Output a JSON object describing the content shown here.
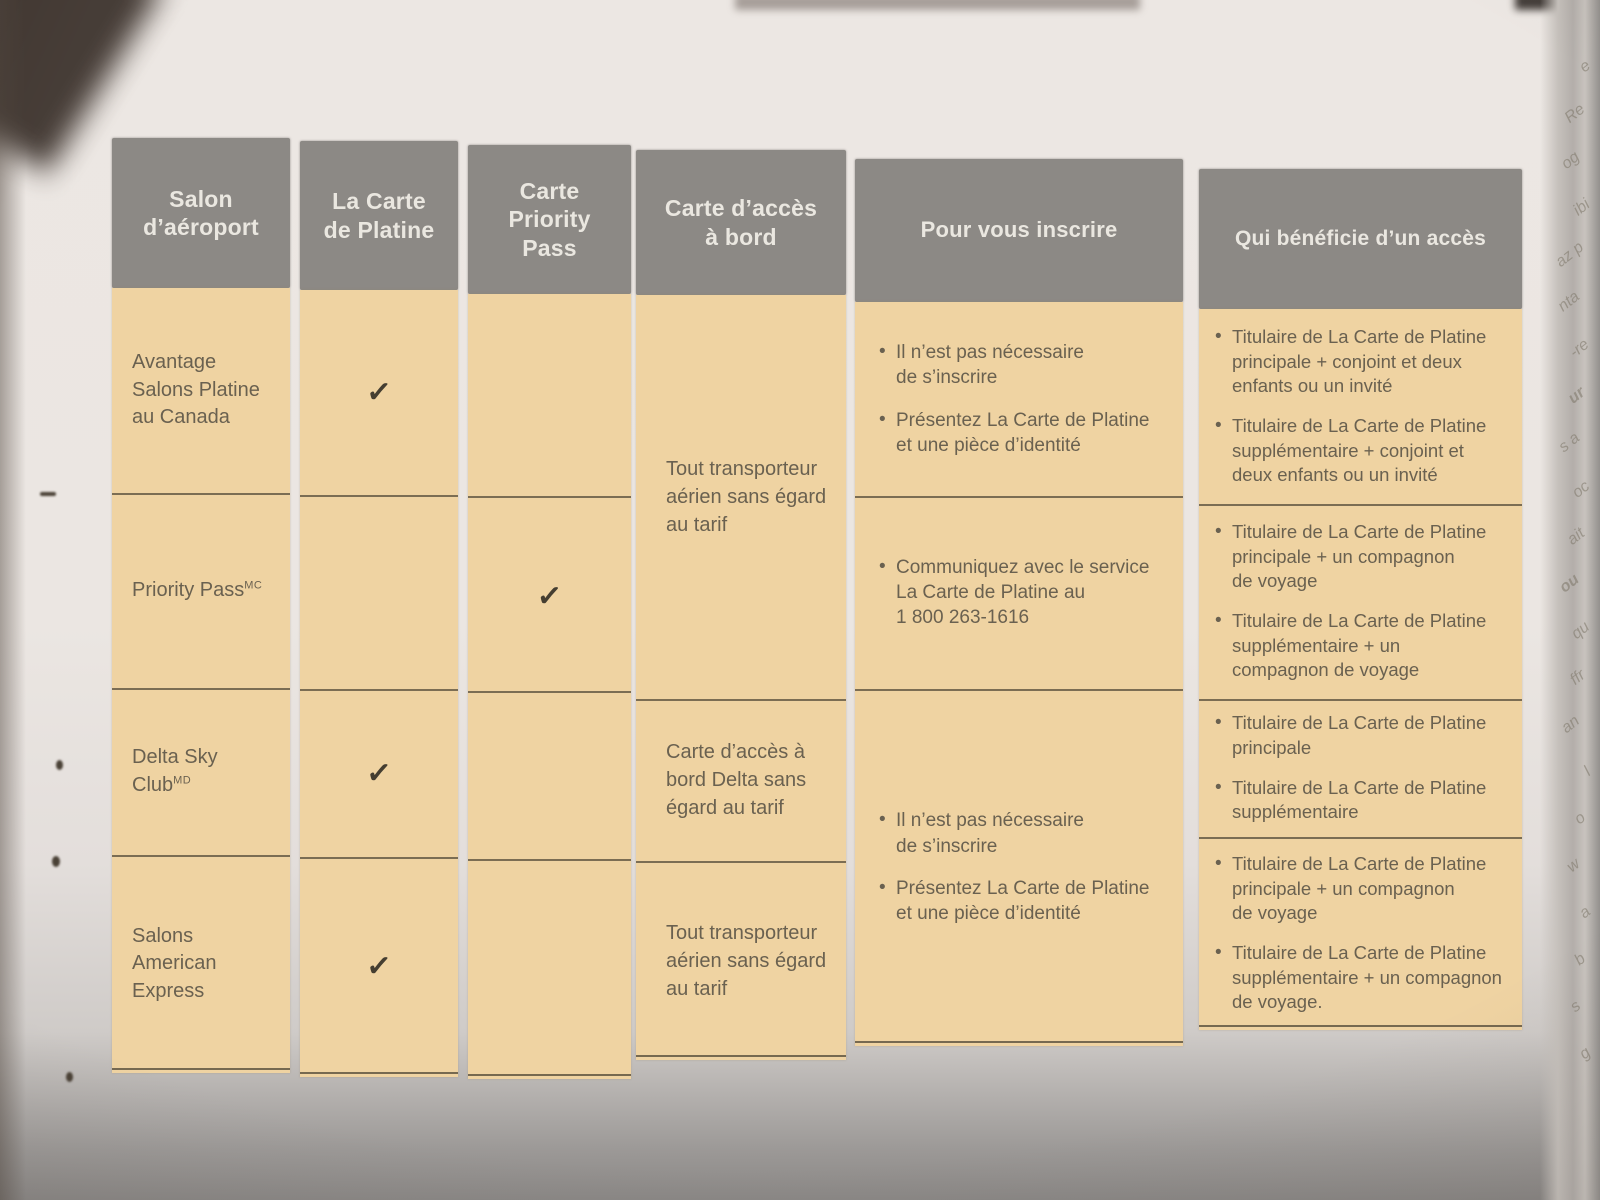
{
  "colors": {
    "header_bg": "#8c8985",
    "header_text": "#eae7e0",
    "cell_bg": "#efd3a2",
    "body_text": "#6a6150",
    "divider": "#4e4534",
    "check": "#453e31"
  },
  "photo": {
    "edge_fragments": [
      "e",
      "Re",
      "og",
      "ibi",
      "az p",
      "nta",
      "-re",
      "ur",
      "s a",
      "oc",
      "ait",
      "ou",
      "qu",
      "ffr",
      "an",
      "l",
      "o",
      "w",
      "a",
      "b",
      "s",
      "g"
    ]
  },
  "table": {
    "bullet_glyph": "•",
    "headers": {
      "lounge": "Salon\nd’aéroport",
      "platinum": "La Carte\nde Platine",
      "priority": "Carte\nPriority\nPass",
      "boarding": "Carte d’accès\nà bord",
      "enroll": "Pour vous inscrire",
      "access": "Qui bénéficie d’un accès"
    },
    "lounges": [
      {
        "name": "Avantage\nSalons Platine\nau Canada",
        "sup": ""
      },
      {
        "name": "Priority Pass",
        "sup": "MC"
      },
      {
        "name": "Delta Sky\nClub",
        "sup": "MD"
      },
      {
        "name": "Salons\nAmerican\nExpress",
        "sup": ""
      }
    ],
    "platinum_checks": [
      "✓",
      "",
      "✓",
      "✓"
    ],
    "priority_checks": [
      "",
      "✓",
      "",
      ""
    ],
    "boarding_cells": [
      {
        "text": "Tout transporteur\naérien sans égard\nau tarif"
      },
      {
        "text": "Carte d’accès à\nbord Delta sans\négard au tarif"
      },
      {
        "text": "Tout transporteur\naérien sans égard\nau tarif"
      }
    ],
    "enroll_cells": [
      {
        "bullets": [
          "Il n’est pas nécessaire\nde s’inscrire",
          "Présentez La Carte de Platine\net une pièce d’identité"
        ]
      },
      {
        "bullets": [
          "Communiquez avec le service\nLa Carte de Platine au\n1 800 263-1616"
        ]
      },
      {
        "bullets": [
          "Il n’est pas nécessaire\nde s’inscrire",
          "Présentez La Carte de Platine\net une pièce d’identité"
        ]
      }
    ],
    "access_cells": [
      {
        "bullets": [
          "Titulaire de La Carte de Platine\nprincipale + conjoint et deux\nenfants ou un invité",
          "Titulaire de La Carte de Platine\nsupplémentaire + conjoint et\ndeux enfants ou un invité"
        ]
      },
      {
        "bullets": [
          "Titulaire de La Carte de Platine\nprincipale + un compagnon\nde voyage",
          "Titulaire de La Carte de Platine\nsupplémentaire + un\ncompagnon de voyage"
        ]
      },
      {
        "bullets": [
          "Titulaire de La Carte de Platine\nprincipale",
          "Titulaire de La Carte de Platine\nsupplémentaire"
        ]
      },
      {
        "bullets": [
          "Titulaire de La Carte de Platine\nprincipale + un compagnon\nde voyage",
          "Titulaire de La Carte de Platine\nsupplémentaire + un compagnon\nde voyage."
        ]
      }
    ]
  }
}
